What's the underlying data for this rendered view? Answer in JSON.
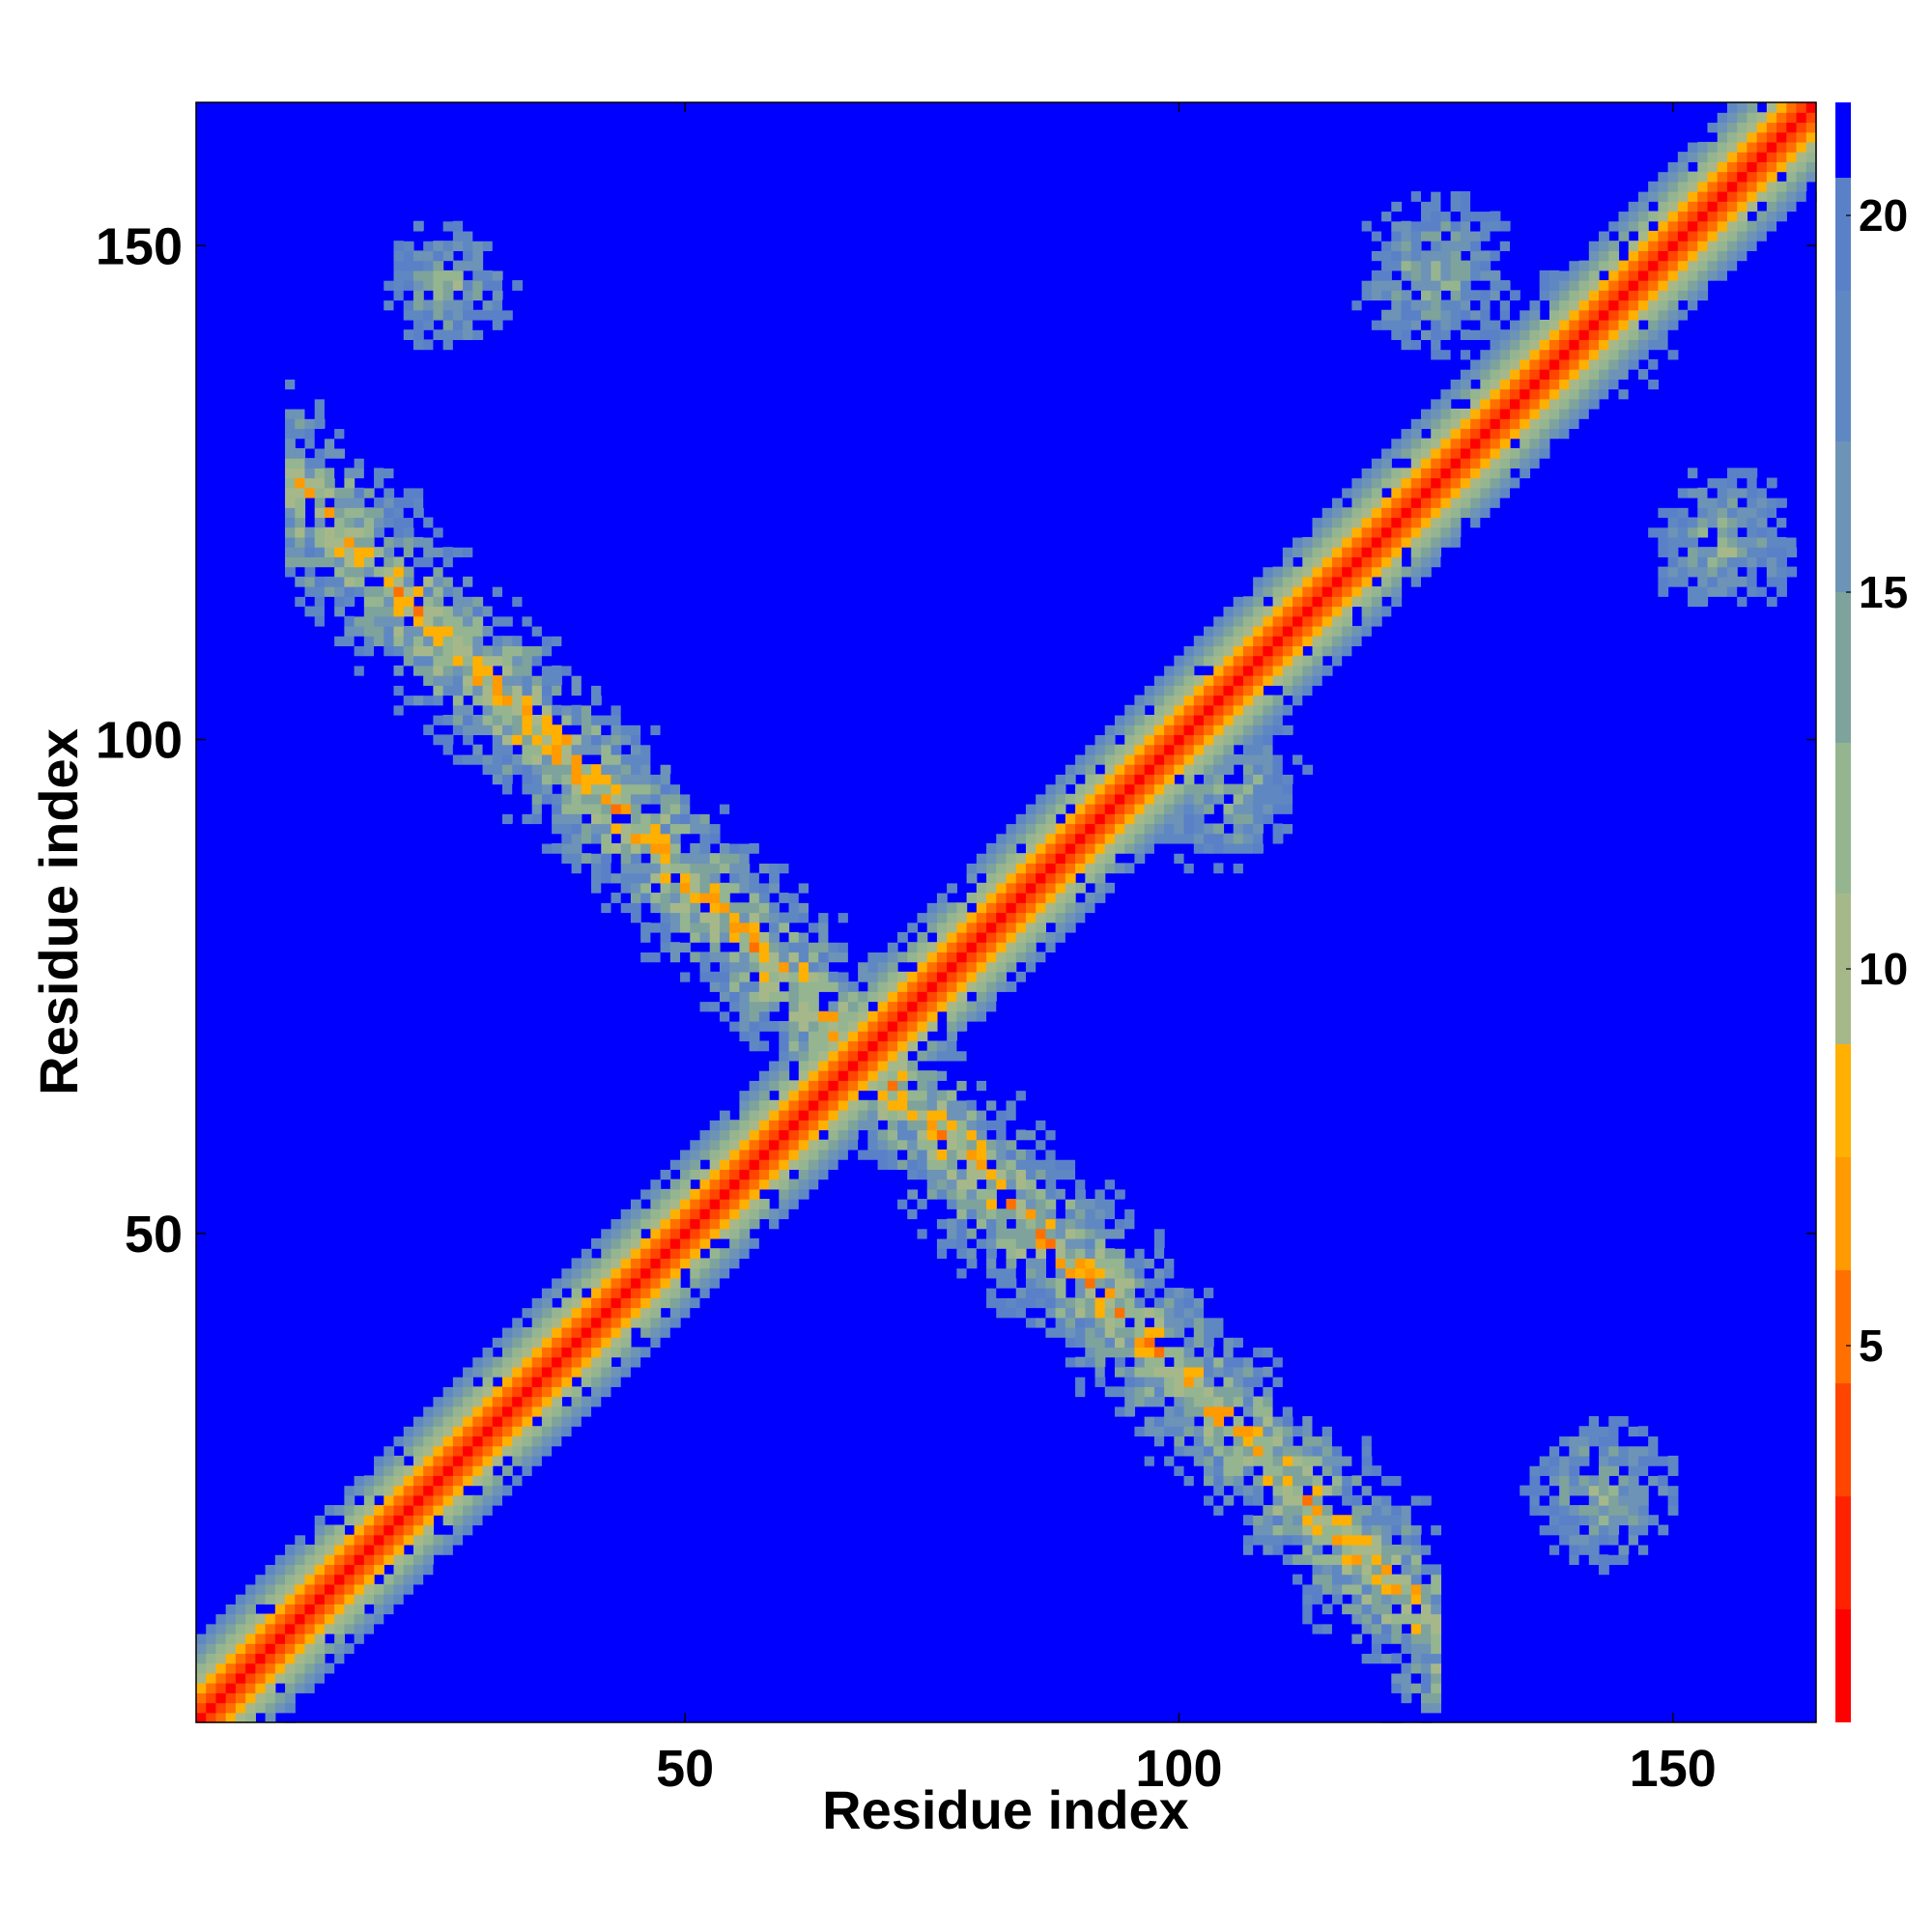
{
  "chart_data": {
    "type": "heatmap",
    "title": "",
    "xlabel": "Residue index",
    "ylabel": "Residue index",
    "xlim": [
      1,
      164
    ],
    "ylim": [
      1,
      164
    ],
    "x_ticks": [
      50,
      100,
      150
    ],
    "y_ticks": [
      50,
      100,
      150
    ],
    "colorbar": {
      "range": [
        0,
        21.5
      ],
      "ticks": [
        5,
        10,
        15,
        20
      ],
      "levels": [
        {
          "max": 1.5,
          "color": "#ff0000"
        },
        {
          "max": 3.0,
          "color": "#ff2200"
        },
        {
          "max": 4.5,
          "color": "#ff4500"
        },
        {
          "max": 6.0,
          "color": "#ff7000"
        },
        {
          "max": 7.5,
          "color": "#ff9a00"
        },
        {
          "max": 9.0,
          "color": "#ffb000"
        },
        {
          "max": 11.0,
          "color": "#a6b88a"
        },
        {
          "max": 13.0,
          "color": "#95b591"
        },
        {
          "max": 15.0,
          "color": "#7ea39c"
        },
        {
          "max": 17.0,
          "color": "#6d93b7"
        },
        {
          "max": 19.0,
          "color": "#5f88c3"
        },
        {
          "max": 20.5,
          "color": "#5a80c8"
        },
        {
          "max": 99,
          "color": "#0000ff"
        }
      ]
    },
    "background_color": "#0000ff",
    "features": [
      {
        "kind": "diagonal",
        "value": 0,
        "halfwidth": 9
      },
      {
        "kind": "antidiagonal",
        "sum": 136,
        "range": [
          10,
          126
        ],
        "halfwidth": 7
      },
      {
        "kind": "blob",
        "x": 26,
        "y": 146,
        "r": 7
      },
      {
        "kind": "blob",
        "x": 126,
        "y": 147,
        "r": 9
      },
      {
        "kind": "blob",
        "x": 143,
        "y": 142,
        "r": 8
      },
      {
        "kind": "blob",
        "x": 155,
        "y": 120,
        "r": 8
      },
      {
        "kind": "blob",
        "x": 143,
        "y": 24,
        "r": 8
      },
      {
        "kind": "blob",
        "x": 105,
        "y": 95,
        "r": 9
      }
    ]
  }
}
